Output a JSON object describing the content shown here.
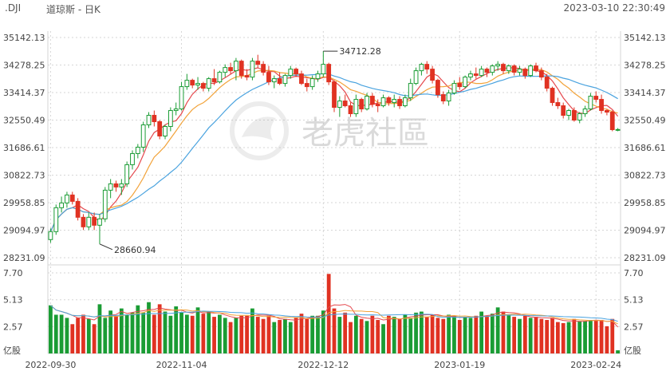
{
  "header": {
    "symbol": ".DJI",
    "name": "道琼斯 - 日K",
    "timestamp": "2023-03-10 22:30:49"
  },
  "watermark": {
    "text": "老虎社區"
  },
  "colors": {
    "up": "#1a9c34",
    "down": "#e03222",
    "ma1": "#e5484d",
    "ma2": "#f2a33a",
    "ma3": "#4aa3df",
    "grid": "#d6d6d6",
    "axis_text": "#444444"
  },
  "chart_data": {
    "type": "candlestick",
    "y_ticks": [
      "35142.13",
      "34278.25",
      "33414.37",
      "32550.49",
      "31686.61",
      "30822.73",
      "29958.85",
      "29094.97",
      "28231.09"
    ],
    "ylim": [
      28231.09,
      35142.13
    ],
    "volume_ticks": [
      "7.70",
      "5.13",
      "2.57",
      "亿股"
    ],
    "volume_lim": [
      0,
      7.7
    ],
    "x_ticks": [
      {
        "label": "2022-09-30",
        "index": 0
      },
      {
        "label": "2022-11-04",
        "index": 24
      },
      {
        "label": "2022-12-12",
        "index": 50
      },
      {
        "label": "2023-01-19",
        "index": 75
      },
      {
        "label": "2023-02-24",
        "index": 100
      }
    ],
    "annotations": [
      {
        "label": "34712.28",
        "index": 50,
        "value": 34712.28,
        "kind": "high"
      },
      {
        "label": "28660.94",
        "index": 9,
        "value": 28660.94,
        "kind": "low"
      }
    ],
    "candles": [
      {
        "o": 28800,
        "h": 29150,
        "l": 28700,
        "c": 29050,
        "v": 4.6
      },
      {
        "o": 29050,
        "h": 29900,
        "l": 28950,
        "c": 29800,
        "v": 3.7
      },
      {
        "o": 29800,
        "h": 30150,
        "l": 29650,
        "c": 29950,
        "v": 3.7
      },
      {
        "o": 29950,
        "h": 30300,
        "l": 29800,
        "c": 30200,
        "v": 3.4
      },
      {
        "o": 30200,
        "h": 30300,
        "l": 29900,
        "c": 30000,
        "v": 2.8
      },
      {
        "o": 30000,
        "h": 30100,
        "l": 29400,
        "c": 29500,
        "v": 3.4
      },
      {
        "o": 29500,
        "h": 29600,
        "l": 29100,
        "c": 29200,
        "v": 3.7
      },
      {
        "o": 29200,
        "h": 29650,
        "l": 29100,
        "c": 29500,
        "v": 3.3
      },
      {
        "o": 29500,
        "h": 29650,
        "l": 29100,
        "c": 29250,
        "v": 2.8
      },
      {
        "o": 29250,
        "h": 29600,
        "l": 28660.94,
        "c": 29450,
        "v": 4.7
      },
      {
        "o": 29450,
        "h": 30450,
        "l": 29350,
        "c": 30350,
        "v": 3.4
      },
      {
        "o": 30350,
        "h": 30700,
        "l": 30100,
        "c": 30550,
        "v": 4.1
      },
      {
        "o": 30550,
        "h": 30650,
        "l": 30300,
        "c": 30450,
        "v": 3.6
      },
      {
        "o": 30450,
        "h": 30700,
        "l": 30200,
        "c": 30550,
        "v": 4.3
      },
      {
        "o": 30550,
        "h": 31250,
        "l": 30450,
        "c": 31150,
        "v": 3.7
      },
      {
        "o": 31150,
        "h": 31600,
        "l": 31000,
        "c": 31500,
        "v": 3.9
      },
      {
        "o": 31500,
        "h": 31800,
        "l": 31350,
        "c": 31700,
        "v": 4.6
      },
      {
        "o": 31700,
        "h": 32500,
        "l": 31550,
        "c": 32400,
        "v": 3.9
      },
      {
        "o": 32400,
        "h": 32800,
        "l": 32300,
        "c": 32700,
        "v": 4.9
      },
      {
        "o": 32700,
        "h": 32850,
        "l": 32350,
        "c": 32500,
        "v": 3.7
      },
      {
        "o": 32500,
        "h": 32550,
        "l": 31950,
        "c": 32050,
        "v": 4.7
      },
      {
        "o": 32050,
        "h": 32400,
        "l": 31950,
        "c": 32350,
        "v": 4.0
      },
      {
        "o": 32350,
        "h": 32950,
        "l": 32200,
        "c": 32850,
        "v": 3.6
      },
      {
        "o": 32850,
        "h": 33100,
        "l": 32700,
        "c": 32900,
        "v": 4.5
      },
      {
        "o": 32900,
        "h": 33750,
        "l": 32850,
        "c": 33600,
        "v": 3.9
      },
      {
        "o": 33600,
        "h": 34000,
        "l": 33500,
        "c": 33800,
        "v": 3.7
      },
      {
        "o": 33800,
        "h": 33850,
        "l": 33550,
        "c": 33650,
        "v": 3.6
      },
      {
        "o": 33650,
        "h": 33900,
        "l": 33500,
        "c": 33700,
        "v": 4.4
      },
      {
        "o": 33700,
        "h": 33750,
        "l": 33450,
        "c": 33550,
        "v": 3.8
      },
      {
        "o": 33550,
        "h": 33900,
        "l": 33450,
        "c": 33850,
        "v": 4.0
      },
      {
        "o": 33850,
        "h": 34150,
        "l": 33650,
        "c": 33750,
        "v": 3.5
      },
      {
        "o": 33750,
        "h": 34100,
        "l": 33700,
        "c": 34050,
        "v": 3.7
      },
      {
        "o": 34050,
        "h": 34300,
        "l": 33900,
        "c": 34200,
        "v": 3.4
      },
      {
        "o": 34200,
        "h": 34350,
        "l": 34000,
        "c": 34100,
        "v": 3.0
      },
      {
        "o": 34100,
        "h": 34500,
        "l": 33800,
        "c": 34400,
        "v": 3.4
      },
      {
        "o": 34400,
        "h": 34450,
        "l": 33850,
        "c": 33950,
        "v": 3.6
      },
      {
        "o": 33950,
        "h": 34150,
        "l": 33800,
        "c": 33900,
        "v": 3.6
      },
      {
        "o": 33900,
        "h": 34500,
        "l": 33800,
        "c": 34400,
        "v": 4.3
      },
      {
        "o": 34400,
        "h": 34600,
        "l": 34200,
        "c": 34300,
        "v": 3.5
      },
      {
        "o": 34300,
        "h": 34400,
        "l": 33950,
        "c": 34050,
        "v": 3.3
      },
      {
        "o": 34050,
        "h": 34250,
        "l": 33650,
        "c": 33750,
        "v": 3.6
      },
      {
        "o": 33750,
        "h": 33950,
        "l": 33550,
        "c": 33850,
        "v": 3.0
      },
      {
        "o": 33850,
        "h": 34050,
        "l": 33650,
        "c": 33700,
        "v": 3.2
      },
      {
        "o": 33700,
        "h": 34000,
        "l": 33600,
        "c": 33950,
        "v": 3.3
      },
      {
        "o": 33950,
        "h": 34250,
        "l": 33850,
        "c": 34150,
        "v": 3.0
      },
      {
        "o": 34150,
        "h": 34200,
        "l": 33900,
        "c": 34000,
        "v": 3.4
      },
      {
        "o": 34000,
        "h": 34100,
        "l": 33650,
        "c": 33700,
        "v": 3.8
      },
      {
        "o": 33700,
        "h": 33850,
        "l": 33450,
        "c": 33600,
        "v": 3.3
      },
      {
        "o": 33600,
        "h": 33950,
        "l": 33500,
        "c": 33850,
        "v": 3.6
      },
      {
        "o": 33850,
        "h": 34100,
        "l": 33750,
        "c": 34000,
        "v": 3.6
      },
      {
        "o": 34000,
        "h": 34712.28,
        "l": 33900,
        "c": 34300,
        "v": 4.1
      },
      {
        "o": 34300,
        "h": 34350,
        "l": 33650,
        "c": 33750,
        "v": 7.6
      },
      {
        "o": 33750,
        "h": 33800,
        "l": 32800,
        "c": 32950,
        "v": 4.3
      },
      {
        "o": 32950,
        "h": 33300,
        "l": 32650,
        "c": 33150,
        "v": 3.5
      },
      {
        "o": 33150,
        "h": 33350,
        "l": 32950,
        "c": 33000,
        "v": 3.9
      },
      {
        "o": 33000,
        "h": 33100,
        "l": 32650,
        "c": 32750,
        "v": 3.0
      },
      {
        "o": 32750,
        "h": 33350,
        "l": 32650,
        "c": 33200,
        "v": 3.6
      },
      {
        "o": 33200,
        "h": 33250,
        "l": 32800,
        "c": 32900,
        "v": 3.3
      },
      {
        "o": 32900,
        "h": 33400,
        "l": 32850,
        "c": 33300,
        "v": 3.1
      },
      {
        "o": 33300,
        "h": 33400,
        "l": 32950,
        "c": 33050,
        "v": 3.6
      },
      {
        "o": 33050,
        "h": 33200,
        "l": 32800,
        "c": 33000,
        "v": 3.2
      },
      {
        "o": 33000,
        "h": 33350,
        "l": 32950,
        "c": 33250,
        "v": 2.8
      },
      {
        "o": 33250,
        "h": 33300,
        "l": 33000,
        "c": 33100,
        "v": 3.6
      },
      {
        "o": 33100,
        "h": 33350,
        "l": 32950,
        "c": 33200,
        "v": 3.5
      },
      {
        "o": 33200,
        "h": 33300,
        "l": 32900,
        "c": 33000,
        "v": 3.3
      },
      {
        "o": 33000,
        "h": 33350,
        "l": 32950,
        "c": 33250,
        "v": 3.7
      },
      {
        "o": 33250,
        "h": 33850,
        "l": 33150,
        "c": 33700,
        "v": 3.4
      },
      {
        "o": 33700,
        "h": 34200,
        "l": 33650,
        "c": 34100,
        "v": 3.9
      },
      {
        "o": 34100,
        "h": 34350,
        "l": 33950,
        "c": 34300,
        "v": 4.0
      },
      {
        "o": 34300,
        "h": 34400,
        "l": 34000,
        "c": 34150,
        "v": 3.5
      },
      {
        "o": 34150,
        "h": 34250,
        "l": 33700,
        "c": 33800,
        "v": 3.7
      },
      {
        "o": 33800,
        "h": 33850,
        "l": 33250,
        "c": 33350,
        "v": 3.4
      },
      {
        "o": 33350,
        "h": 33450,
        "l": 33050,
        "c": 33150,
        "v": 3.3
      },
      {
        "o": 33150,
        "h": 33500,
        "l": 33000,
        "c": 33400,
        "v": 3.7
      },
      {
        "o": 33400,
        "h": 33800,
        "l": 33350,
        "c": 33700,
        "v": 3.6
      },
      {
        "o": 33700,
        "h": 33900,
        "l": 33500,
        "c": 33600,
        "v": 3.2
      },
      {
        "o": 33600,
        "h": 33950,
        "l": 33550,
        "c": 33900,
        "v": 3.5
      },
      {
        "o": 33900,
        "h": 34100,
        "l": 33800,
        "c": 34000,
        "v": 3.4
      },
      {
        "o": 34000,
        "h": 34200,
        "l": 33850,
        "c": 33950,
        "v": 3.6
      },
      {
        "o": 33950,
        "h": 34250,
        "l": 33900,
        "c": 34150,
        "v": 4.0
      },
      {
        "o": 34150,
        "h": 34200,
        "l": 33900,
        "c": 34050,
        "v": 3.6
      },
      {
        "o": 34050,
        "h": 34300,
        "l": 33950,
        "c": 34250,
        "v": 3.8
      },
      {
        "o": 34250,
        "h": 34400,
        "l": 34100,
        "c": 34300,
        "v": 4.4
      },
      {
        "o": 34300,
        "h": 34350,
        "l": 34000,
        "c": 34100,
        "v": 4.0
      },
      {
        "o": 34100,
        "h": 34300,
        "l": 34000,
        "c": 34250,
        "v": 3.7
      },
      {
        "o": 34250,
        "h": 34300,
        "l": 33950,
        "c": 34050,
        "v": 3.5
      },
      {
        "o": 34050,
        "h": 34250,
        "l": 33950,
        "c": 34150,
        "v": 3.3
      },
      {
        "o": 34150,
        "h": 34200,
        "l": 33850,
        "c": 33950,
        "v": 3.6
      },
      {
        "o": 33950,
        "h": 34300,
        "l": 33900,
        "c": 34250,
        "v": 3.4
      },
      {
        "o": 34250,
        "h": 34350,
        "l": 34050,
        "c": 34100,
        "v": 3.5
      },
      {
        "o": 34100,
        "h": 34200,
        "l": 33800,
        "c": 33900,
        "v": 3.3
      },
      {
        "o": 33900,
        "h": 34000,
        "l": 33450,
        "c": 33550,
        "v": 3.2
      },
      {
        "o": 33550,
        "h": 33600,
        "l": 33000,
        "c": 33100,
        "v": 3.4
      },
      {
        "o": 33100,
        "h": 33250,
        "l": 32900,
        "c": 33000,
        "v": 3.0
      },
      {
        "o": 33000,
        "h": 33100,
        "l": 32600,
        "c": 32700,
        "v": 2.9
      },
      {
        "o": 32700,
        "h": 32900,
        "l": 32550,
        "c": 32850,
        "v": 3.0
      },
      {
        "o": 32850,
        "h": 32950,
        "l": 32500,
        "c": 32550,
        "v": 3.3
      },
      {
        "o": 32550,
        "h": 32800,
        "l": 32450,
        "c": 32750,
        "v": 3.1
      },
      {
        "o": 32750,
        "h": 33000,
        "l": 32650,
        "c": 32900,
        "v": 3.1
      },
      {
        "o": 32900,
        "h": 33400,
        "l": 32850,
        "c": 33300,
        "v": 3.2
      },
      {
        "o": 33300,
        "h": 33450,
        "l": 33100,
        "c": 33200,
        "v": 3.2
      },
      {
        "o": 33200,
        "h": 33350,
        "l": 32750,
        "c": 32850,
        "v": 3.2
      },
      {
        "o": 32850,
        "h": 32900,
        "l": 32700,
        "c": 32800,
        "v": 2.6
      },
      {
        "o": 32800,
        "h": 32850,
        "l": 32200,
        "c": 32250,
        "v": 3.3
      },
      {
        "o": 32250,
        "h": 32300,
        "l": 32200,
        "c": 32254,
        "v": 0.3
      }
    ]
  }
}
